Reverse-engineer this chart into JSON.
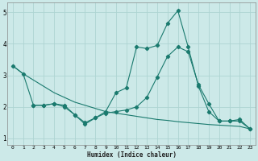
{
  "xlabel": "Humidex (Indice chaleur)",
  "background_color": "#cce9e8",
  "grid_color": "#aed4d2",
  "line_color": "#1a7a6e",
  "line_declining_x": [
    0,
    1,
    2,
    3,
    4,
    5,
    6,
    7,
    8,
    9,
    10,
    11,
    12,
    13,
    14,
    15,
    16,
    17,
    18,
    19,
    20,
    21,
    22,
    23
  ],
  "line_declining_y": [
    3.3,
    3.05,
    2.85,
    2.65,
    2.45,
    2.3,
    2.15,
    2.05,
    1.95,
    1.85,
    1.8,
    1.75,
    1.7,
    1.65,
    1.6,
    1.57,
    1.53,
    1.5,
    1.47,
    1.44,
    1.42,
    1.4,
    1.38,
    1.3
  ],
  "line_peaked_x": [
    2,
    3,
    4,
    5,
    6,
    7,
    8,
    9,
    10,
    11,
    12,
    13,
    14,
    15,
    16,
    17,
    18,
    19,
    20,
    21,
    22,
    23
  ],
  "line_peaked_y": [
    2.05,
    2.05,
    2.1,
    2.0,
    1.75,
    1.45,
    1.65,
    1.85,
    2.45,
    2.6,
    3.9,
    3.85,
    3.95,
    4.65,
    5.05,
    3.9,
    2.65,
    1.85,
    1.55,
    1.55,
    1.6,
    1.3
  ],
  "line_middle_x": [
    0,
    1,
    2,
    3,
    4,
    5,
    6,
    7,
    8,
    9,
    10,
    11,
    12,
    13,
    14,
    15,
    16,
    17,
    18,
    19,
    20,
    21,
    22,
    23
  ],
  "line_middle_y": [
    3.3,
    3.05,
    2.05,
    2.05,
    2.1,
    2.05,
    1.75,
    1.5,
    1.65,
    1.8,
    1.85,
    1.9,
    2.0,
    2.3,
    2.95,
    3.6,
    3.9,
    3.75,
    2.7,
    2.1,
    1.55,
    1.55,
    1.55,
    1.3
  ],
  "ylim": [
    0.8,
    5.3
  ],
  "xlim": [
    -0.5,
    23.5
  ],
  "yticks": [
    1,
    2,
    3,
    4,
    5
  ],
  "xticks": [
    0,
    1,
    2,
    3,
    4,
    5,
    6,
    7,
    8,
    9,
    10,
    11,
    12,
    13,
    14,
    15,
    16,
    17,
    18,
    19,
    20,
    21,
    22,
    23
  ]
}
